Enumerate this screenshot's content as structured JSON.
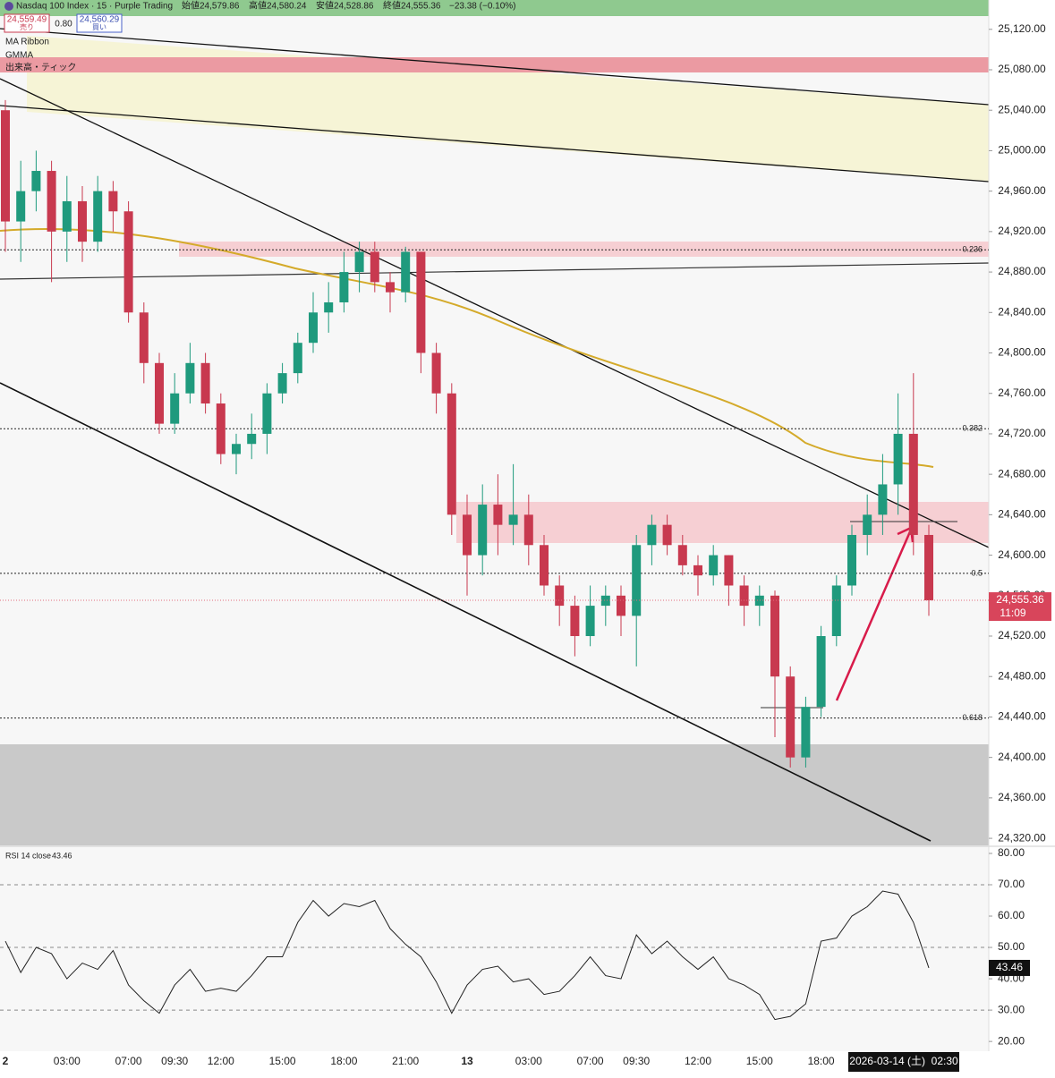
{
  "header": {
    "title": "Nasdaq 100 Index · 15 · Purple Trading",
    "ohlc": [
      "始値",
      "24,579.86",
      "高値",
      "24,580.24",
      "安値",
      "24,528.86",
      "終値",
      "24,555.36",
      "−23.38 (−0.10%)"
    ],
    "sell_price": "24,559.49",
    "sell_label": "売り",
    "spread": "0.80",
    "buy_price": "24,560.29",
    "buy_label": "買い",
    "indicators": [
      "MA Ribbon",
      "GMMA",
      "出来高・ティック"
    ],
    "countdown": "11:09",
    "crosshair_time": "2026-03-14 (土)  02:30"
  },
  "chart_data": [
    {
      "type": "candlestick",
      "up_color": "#1f9a7d",
      "down_color": "#c8394f",
      "categories": [
        "2",
        null,
        null,
        null,
        "03:00",
        null,
        null,
        null,
        "07:00",
        null,
        null,
        "09:30",
        null,
        null,
        "12:00",
        null,
        null,
        null,
        "15:00",
        null,
        null,
        null,
        "18:00",
        null,
        null,
        null,
        "21:00",
        null,
        null,
        null,
        "13",
        null,
        null,
        null,
        "03:00",
        null,
        null,
        null,
        "07:00",
        null,
        null,
        "09:30",
        null,
        null,
        null,
        "12:00",
        null,
        null,
        null,
        "15:00",
        null,
        null,
        null,
        "18:00",
        null,
        null,
        null,
        null,
        null,
        null,
        null
      ],
      "open": [
        25040,
        24930,
        24960,
        24980,
        24920,
        24950,
        24910,
        24960,
        24940,
        24840,
        24790,
        24730,
        24760,
        24790,
        24750,
        24700,
        24710,
        24720,
        24760,
        24780,
        24810,
        24840,
        24850,
        24880,
        24900,
        24870,
        24860,
        24900,
        24800,
        24760,
        24640,
        24600,
        24650,
        24630,
        24640,
        24610,
        24570,
        24550,
        24520,
        24550,
        24560,
        24540,
        24610,
        24630,
        24610,
        24590,
        24580,
        24600,
        24570,
        24550,
        24560,
        24480,
        24400,
        24450,
        24520,
        24570,
        24620,
        24640,
        24670,
        24720,
        24620
      ],
      "high": [
        25050,
        24990,
        25000,
        24990,
        24975,
        24965,
        24975,
        24970,
        24950,
        24850,
        24800,
        24780,
        24810,
        24800,
        24760,
        24720,
        24740,
        24770,
        24790,
        24820,
        24860,
        24870,
        24900,
        24910,
        24910,
        24880,
        24905,
        24900,
        24810,
        24770,
        24660,
        24670,
        24680,
        24690,
        24660,
        24620,
        24580,
        24560,
        24570,
        24570,
        24570,
        24620,
        24640,
        24640,
        24620,
        24600,
        24610,
        24600,
        24580,
        24570,
        24565,
        24490,
        24460,
        24530,
        24580,
        24630,
        24660,
        24700,
        24760,
        24780,
        24630
      ],
      "low": [
        24900,
        24890,
        24940,
        24870,
        24890,
        24890,
        24900,
        24920,
        24830,
        24770,
        24720,
        24720,
        24750,
        24740,
        24690,
        24680,
        24695,
        24700,
        24750,
        24770,
        24800,
        24820,
        24840,
        24860,
        24860,
        24840,
        24850,
        24780,
        24740,
        24620,
        24560,
        24580,
        24600,
        24610,
        24590,
        24560,
        24530,
        24500,
        24510,
        24530,
        24520,
        24490,
        24590,
        24600,
        24580,
        24560,
        24570,
        24550,
        24530,
        24530,
        24420,
        24390,
        24390,
        24440,
        24510,
        24560,
        24600,
        24620,
        24640,
        24600,
        24540
      ],
      "close": [
        24930,
        24960,
        24980,
        24920,
        24950,
        24910,
        24960,
        24940,
        24840,
        24790,
        24730,
        24760,
        24790,
        24750,
        24700,
        24710,
        24720,
        24760,
        24780,
        24810,
        24840,
        24850,
        24880,
        24900,
        24870,
        24860,
        24900,
        24800,
        24760,
        24640,
        24600,
        24650,
        24630,
        24640,
        24610,
        24570,
        24550,
        24520,
        24550,
        24560,
        24540,
        24610,
        24630,
        24610,
        24590,
        24580,
        24600,
        24570,
        24550,
        24560,
        24480,
        24400,
        24450,
        24520,
        24570,
        24620,
        24640,
        24670,
        24720,
        24620,
        24555.36
      ],
      "ylim": [
        24313,
        25149
      ],
      "yticks": [
        {
          "value": 24320,
          "label": "24,320.00"
        },
        {
          "value": 24360,
          "label": "24,360.00"
        },
        {
          "value": 24400,
          "label": "24,400.00"
        },
        {
          "value": 24440,
          "label": "24,440.00"
        },
        {
          "value": 24480,
          "label": "24,480.00"
        },
        {
          "value": 24520,
          "label": "24,520.00"
        },
        {
          "value": 24560,
          "label": "24,560.00"
        },
        {
          "value": 24600,
          "label": "24,600.00"
        },
        {
          "value": 24640,
          "label": "24,640.00"
        },
        {
          "value": 24680,
          "label": "24,680.00"
        },
        {
          "value": 24720,
          "label": "24,720.00"
        },
        {
          "value": 24760,
          "label": "24,760.00"
        },
        {
          "value": 24800,
          "label": "24,800.00"
        },
        {
          "value": 24840,
          "label": "24,840.00"
        },
        {
          "value": 24880,
          "label": "24,880.00"
        },
        {
          "value": 24920,
          "label": "24,920.00"
        },
        {
          "value": 24960,
          "label": "24,960.00"
        },
        {
          "value": 25000,
          "label": "25,000.00"
        },
        {
          "value": 25040,
          "label": "25,040.00"
        },
        {
          "value": 25080,
          "label": "25,080.00"
        },
        {
          "value": 25120,
          "label": "25,120.00"
        }
      ],
      "last_price": {
        "value": 24555.36,
        "label": "24,555.36"
      },
      "annotations": [
        {
          "value": 24902,
          "label": "0.236"
        },
        {
          "value": 24725,
          "label": "0.382"
        },
        {
          "value": 24582,
          "label": "0.5"
        },
        {
          "value": 24439,
          "label": "0.618"
        }
      ]
    },
    {
      "type": "line",
      "title": "RSI 14 close",
      "color": "#222222",
      "values": [
        52,
        42,
        50,
        48,
        40,
        45,
        43,
        49,
        38,
        33,
        29,
        38,
        43,
        36,
        37,
        36,
        41,
        47,
        47,
        58,
        65,
        60,
        64,
        63,
        65,
        56,
        51,
        47,
        39,
        29,
        38,
        43,
        44,
        39,
        40,
        35,
        36,
        41,
        47,
        41,
        40,
        54,
        48,
        52,
        47,
        43,
        47,
        40,
        38,
        35,
        27,
        28,
        32,
        52,
        53,
        60,
        63,
        68,
        67,
        58,
        43.46
      ],
      "last_value": {
        "value": 43.46,
        "label": "43.46"
      },
      "ylim": [
        16.9,
        81.7
      ],
      "yticks": [
        {
          "value": 20,
          "label": "20.00"
        },
        {
          "value": 30,
          "label": "30.00"
        },
        {
          "value": 40,
          "label": "40.00"
        },
        {
          "value": 50,
          "label": "50.00"
        },
        {
          "value": 60,
          "label": "60.00"
        },
        {
          "value": 70,
          "label": "70.00"
        },
        {
          "value": 80,
          "label": "80.00"
        }
      ],
      "levels": [
        30,
        50,
        70
      ]
    }
  ]
}
